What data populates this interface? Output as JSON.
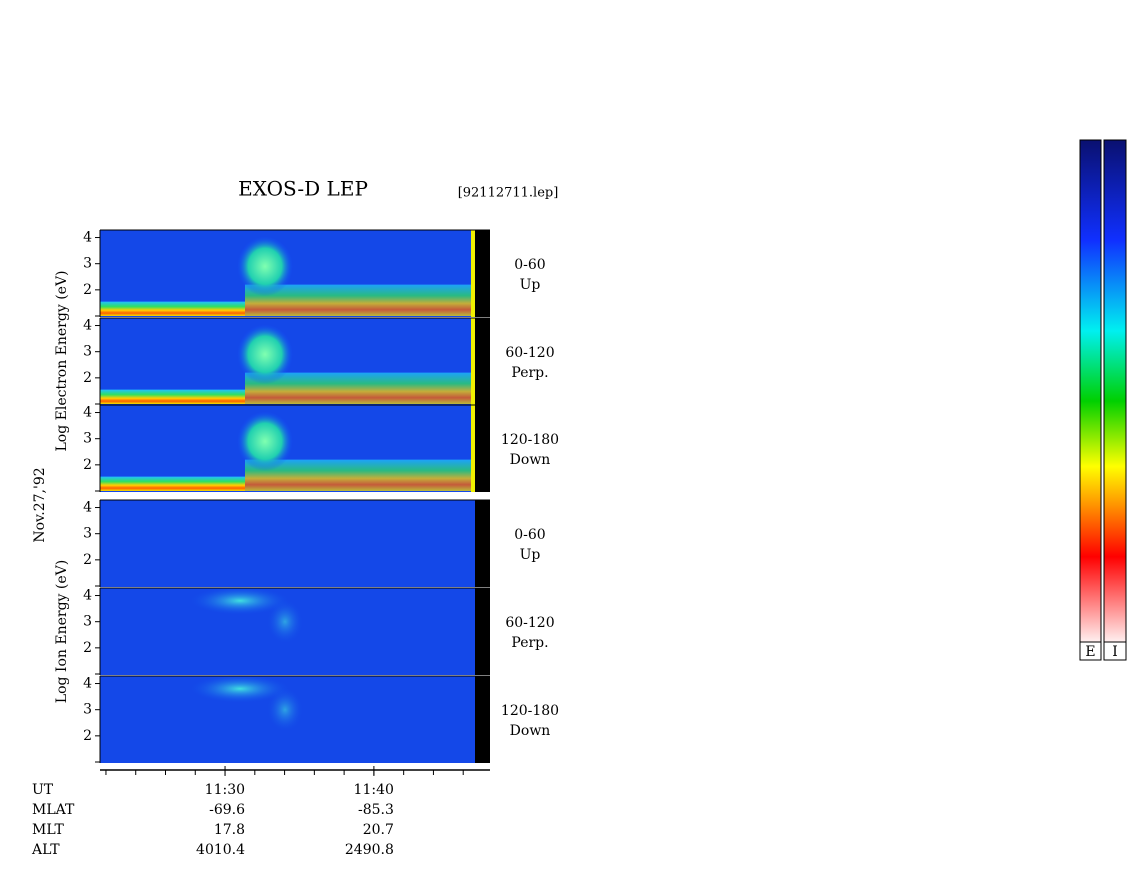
{
  "title": "EXOS-D LEP",
  "file": "[92112711.lep]",
  "date": "Nov.27,'92",
  "groups": [
    {
      "ylabel": "Log Electron Energy (eV)",
      "panels": [
        {
          "range": "0-60",
          "direction": "Up",
          "ylim": [
            1,
            4.25
          ],
          "yticks": [
            2,
            3,
            4
          ]
        },
        {
          "range": "60-120",
          "direction": "Perp.",
          "ylim": [
            1,
            4.25
          ],
          "yticks": [
            2,
            3,
            4
          ]
        },
        {
          "range": "120-180",
          "direction": "Down",
          "ylim": [
            1,
            4.25
          ],
          "yticks": [
            2,
            3,
            4
          ]
        }
      ]
    },
    {
      "ylabel": "Log Ion Energy (eV)",
      "panels": [
        {
          "range": "0-60",
          "direction": "Up",
          "ylim": [
            1,
            4.25
          ],
          "yticks": [
            2,
            3,
            4
          ]
        },
        {
          "range": "60-120",
          "direction": "Perp.",
          "ylim": [
            1,
            4.25
          ],
          "yticks": [
            2,
            3,
            4
          ]
        },
        {
          "range": "120-180",
          "direction": "Down",
          "ylim": [
            1,
            4.25
          ],
          "yticks": [
            2,
            3,
            4
          ]
        }
      ]
    }
  ],
  "x_axis": {
    "xlim": [
      681.6,
      707.8
    ],
    "xticks": [
      {
        "value": 690,
        "label": "11:30"
      },
      {
        "value": 700,
        "label": "11:40"
      }
    ],
    "minor_xticks": [
      682,
      684,
      686,
      688,
      690,
      692,
      694,
      696,
      698,
      700,
      702,
      704,
      706
    ]
  },
  "ephemeris": {
    "time_row": "UT",
    "rows": [
      {
        "name": "MLAT",
        "values": [
          -69.6,
          -85.3
        ]
      },
      {
        "name": "MLT",
        "values": [
          17.8,
          20.7
        ]
      },
      {
        "name": "ALT",
        "values": [
          4010.4,
          2490.8
        ]
      }
    ]
  },
  "colorbars": [
    "E",
    "I"
  ]
}
